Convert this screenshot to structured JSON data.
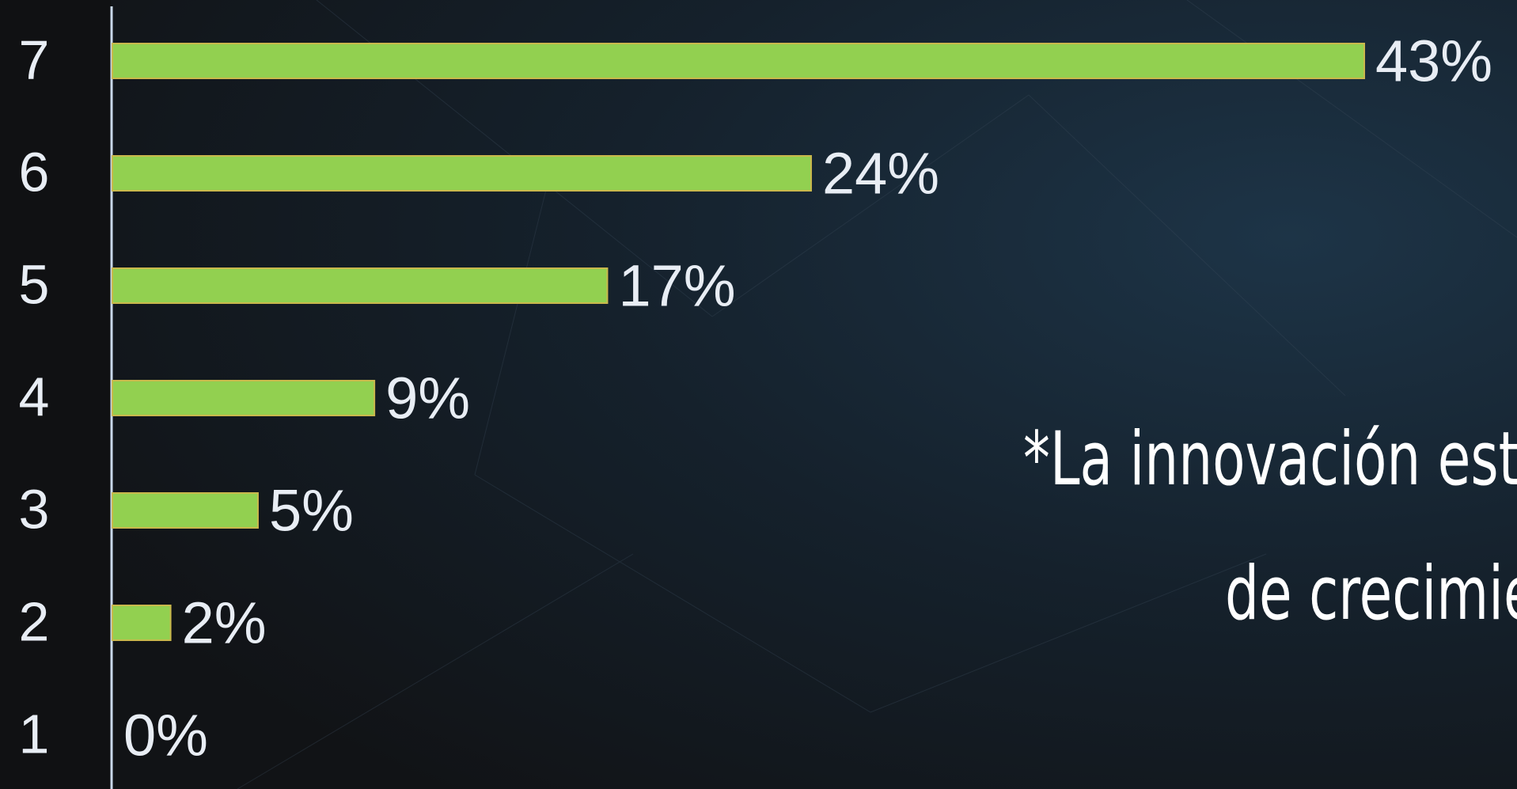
{
  "chart_data": {
    "type": "bar",
    "orientation": "horizontal",
    "categories": [
      "7",
      "6",
      "5",
      "4",
      "3",
      "2",
      "1"
    ],
    "values": [
      43,
      24,
      17,
      9,
      5,
      2,
      0
    ],
    "value_labels": [
      "43%",
      "24%",
      "17%",
      "9%",
      "5%",
      "2%",
      "0%"
    ],
    "color": "#92d050",
    "annotations": [
      "*La innovación est",
      "de crecimie"
    ]
  }
}
